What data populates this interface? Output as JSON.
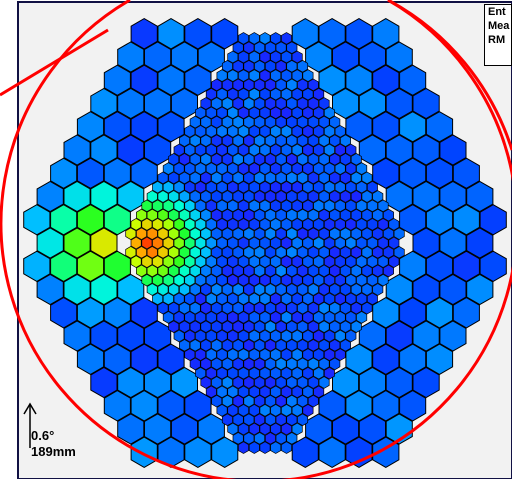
{
  "chart_data": {
    "type": "heatmap",
    "title": "",
    "stats_box": [
      "Ent",
      "Mea",
      "RM"
    ],
    "scale_angle": "0.6°",
    "scale_length": "189mm",
    "colormap": [
      "#3a00ff",
      "#0044ff",
      "#00bfff",
      "#00ffd5",
      "#22ff22",
      "#ccff00",
      "#ffaa00",
      "#ff3300"
    ],
    "background_color": "#f2f2f2",
    "frame_color": "#111144",
    "circle_color": "#ff0000",
    "hotspot": {
      "description_level": "peak",
      "value": 1.0
    },
    "outer_ring_level": 0.12,
    "inner_core_level": 0.08
  }
}
